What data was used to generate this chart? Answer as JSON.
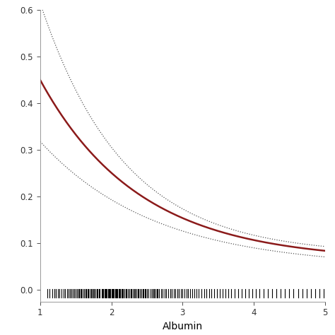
{
  "title": "",
  "xlabel": "Albumin",
  "ylabel": "",
  "xlim": [
    1,
    5
  ],
  "ylim": [
    0.0,
    0.6
  ],
  "yticks": [
    0.0,
    0.1,
    0.2,
    0.3,
    0.4,
    0.5,
    0.6
  ],
  "xticks": [
    1,
    2,
    3,
    4,
    5
  ],
  "main_color": "#8B1A1A",
  "ci_color": "#555555",
  "background_color": "#ffffff",
  "rug_color": "#000000",
  "rug_data": [
    1.1,
    1.13,
    1.17,
    1.2,
    1.22,
    1.25,
    1.27,
    1.3,
    1.33,
    1.35,
    1.38,
    1.4,
    1.42,
    1.44,
    1.46,
    1.48,
    1.5,
    1.52,
    1.54,
    1.55,
    1.57,
    1.58,
    1.6,
    1.62,
    1.64,
    1.65,
    1.67,
    1.68,
    1.7,
    1.72,
    1.73,
    1.75,
    1.76,
    1.78,
    1.8,
    1.81,
    1.83,
    1.84,
    1.86,
    1.87,
    1.88,
    1.9,
    1.91,
    1.92,
    1.93,
    1.95,
    1.96,
    1.97,
    1.98,
    2.0,
    2.01,
    2.02,
    2.03,
    2.05,
    2.06,
    2.07,
    2.08,
    2.1,
    2.11,
    2.12,
    2.14,
    2.15,
    2.16,
    2.18,
    2.2,
    2.21,
    2.23,
    2.25,
    2.27,
    2.28,
    2.3,
    2.32,
    2.33,
    2.35,
    2.37,
    2.38,
    2.4,
    2.42,
    2.44,
    2.45,
    2.47,
    2.48,
    2.5,
    2.52,
    2.55,
    2.57,
    2.59,
    2.6,
    2.62,
    2.64,
    2.65,
    2.67,
    2.7,
    2.72,
    2.75,
    2.77,
    2.8,
    2.83,
    2.85,
    2.88,
    2.9,
    2.93,
    2.95,
    2.98,
    3.0,
    3.03,
    3.06,
    3.08,
    3.11,
    3.14,
    3.17,
    3.2,
    3.23,
    3.26,
    3.3,
    3.33,
    3.37,
    3.4,
    3.44,
    3.48,
    3.52,
    3.56,
    3.6,
    3.64,
    3.68,
    3.73,
    3.78,
    3.83,
    3.88,
    3.93,
    3.98,
    4.03,
    4.08,
    4.14,
    4.2,
    4.26,
    4.32,
    4.38,
    4.44,
    4.5,
    4.56,
    4.62,
    4.68,
    4.74,
    4.8,
    4.86,
    4.92,
    4.98
  ],
  "main_a": 0.388,
  "main_b": 0.72,
  "main_c": 0.062,
  "upper_a": 0.54,
  "upper_b": 0.85,
  "upper_c": 0.075,
  "lower_a": 0.27,
  "lower_b": 0.62,
  "lower_c": 0.048,
  "figsize": [
    4.74,
    4.74
  ],
  "dpi": 100
}
